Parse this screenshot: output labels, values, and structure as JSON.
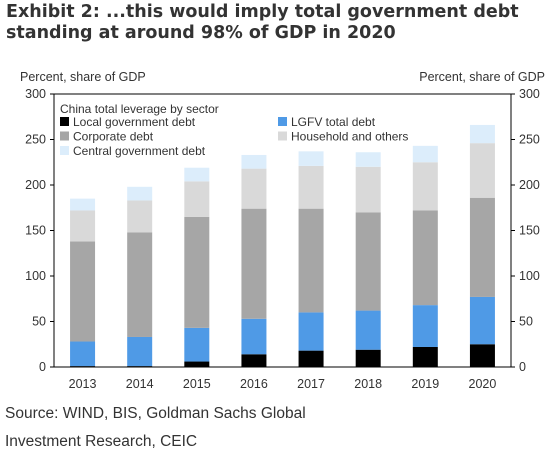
{
  "title_line1": "Exhibit 2: ...this would imply total government debt",
  "title_line2": "standing at around 98% of GDP in 2020",
  "source_line1": "Source: WIND, BIS, Goldman Sachs Global",
  "source_line2": "Investment Research, CEIC",
  "chart_data": {
    "type": "bar",
    "stacked": true,
    "title": "China total leverage by sector",
    "ylabel_left": "Percent, share of GDP",
    "ylabel_right": "Percent, share of GDP",
    "ylim": [
      0,
      300
    ],
    "yticks": [
      0,
      50,
      100,
      150,
      200,
      250,
      300
    ],
    "categories": [
      "2013",
      "2014",
      "2015",
      "2016",
      "2017",
      "2018",
      "2019",
      "2020"
    ],
    "series": [
      {
        "name": "Local government debt",
        "color": "#000000",
        "values": [
          1,
          1,
          6,
          14,
          18,
          19,
          22,
          25
        ]
      },
      {
        "name": "LGFV total debt",
        "color": "#4f9ae6",
        "values": [
          27,
          32,
          37,
          39,
          42,
          43,
          46,
          52
        ]
      },
      {
        "name": "Corporate debt",
        "color": "#a6a6a6",
        "values": [
          110,
          115,
          122,
          121,
          114,
          108,
          104,
          109
        ]
      },
      {
        "name": "Household and others",
        "color": "#d9d9d9",
        "values": [
          34,
          35,
          39,
          44,
          47,
          50,
          53,
          60
        ]
      },
      {
        "name": "Central government debt",
        "color": "#dcedfb",
        "values": [
          13,
          15,
          15,
          15,
          16,
          16,
          18,
          20
        ]
      }
    ],
    "legend_position": "top-left",
    "grid": false
  }
}
